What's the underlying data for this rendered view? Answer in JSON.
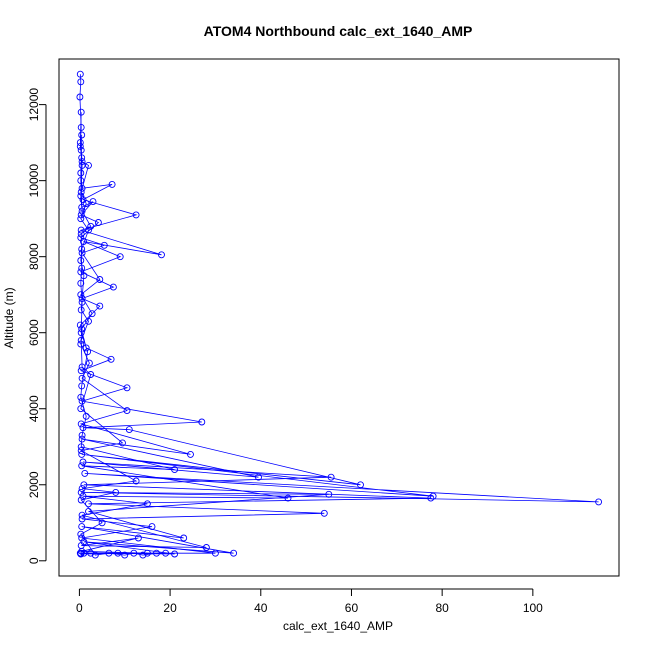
{
  "chart_data": {
    "type": "line",
    "title": "ATOM4 Northbound calc_ext_1640_AMP",
    "xlabel": "calc_ext_1640_AMP",
    "ylabel": "Altitude (m)",
    "xlim": [
      -4.5,
      119
    ],
    "ylim": [
      -400,
      13200
    ],
    "x_ticks": [
      0,
      20,
      40,
      60,
      80,
      100
    ],
    "y_ticks": [
      0,
      2000,
      4000,
      6000,
      8000,
      10000,
      12000
    ],
    "grid": false,
    "legend": "none",
    "marker": "open-circle",
    "color": "#0000ff",
    "series": [
      {
        "values": [
          [
            0.2,
            12800
          ],
          [
            0.3,
            12600
          ],
          [
            0.1,
            12200
          ],
          [
            0.4,
            11400
          ],
          [
            0.2,
            10900
          ],
          [
            0.5,
            10600
          ],
          [
            0.3,
            10200
          ],
          [
            0.6,
            9800
          ],
          [
            7.2,
            9900
          ],
          [
            0.8,
            9500
          ],
          [
            12.5,
            9100
          ],
          [
            0.4,
            8700
          ],
          [
            18.1,
            8050
          ],
          [
            0.9,
            8400
          ],
          [
            9.0,
            8000
          ],
          [
            0.3,
            7600
          ],
          [
            7.5,
            7200
          ],
          [
            0.6,
            6900
          ],
          [
            4.5,
            6700
          ],
          [
            0.2,
            6200
          ],
          [
            1.5,
            5600
          ],
          [
            7.0,
            5300
          ],
          [
            0.4,
            5000
          ],
          [
            10.5,
            4550
          ],
          [
            0.6,
            4200
          ],
          [
            27.0,
            3650
          ],
          [
            0.8,
            3500
          ],
          [
            11.0,
            3450
          ],
          [
            62.0,
            2000
          ],
          [
            0.5,
            2800
          ],
          [
            78.0,
            1700
          ],
          [
            1.2,
            2300
          ],
          [
            114.5,
            1550
          ],
          [
            0.4,
            1800
          ],
          [
            55.0,
            1750
          ],
          [
            2.0,
            1300
          ],
          [
            23.0,
            600
          ],
          [
            0.5,
            900
          ],
          [
            34.0,
            200
          ],
          [
            1.0,
            500
          ],
          [
            21.0,
            180
          ],
          [
            0.3,
            200
          ]
        ]
      },
      {
        "values": [
          [
            0.4,
            11800
          ],
          [
            0.2,
            11000
          ],
          [
            0.6,
            10400
          ],
          [
            0.3,
            9600
          ],
          [
            0.5,
            9300
          ],
          [
            3.0,
            9450
          ],
          [
            0.4,
            9100
          ],
          [
            4.2,
            8900
          ],
          [
            0.3,
            8500
          ],
          [
            5.5,
            8300
          ],
          [
            0.6,
            8100
          ],
          [
            4.5,
            7400
          ],
          [
            0.3,
            7000
          ],
          [
            2.8,
            6500
          ],
          [
            0.5,
            6100
          ],
          [
            0.3,
            5700
          ],
          [
            2.2,
            5200
          ],
          [
            0.6,
            4800
          ],
          [
            10.5,
            3950
          ],
          [
            0.4,
            3600
          ],
          [
            24.5,
            2800
          ],
          [
            0.6,
            3200
          ],
          [
            39.5,
            2200
          ],
          [
            0.8,
            2600
          ],
          [
            55.5,
            2200
          ],
          [
            1.0,
            2000
          ],
          [
            77.5,
            1650
          ],
          [
            2.0,
            1500
          ],
          [
            54.0,
            1250
          ],
          [
            0.6,
            1100
          ],
          [
            16.0,
            900
          ],
          [
            0.5,
            600
          ],
          [
            30.0,
            200
          ],
          [
            0.2,
            200
          ]
        ]
      },
      {
        "values": [
          [
            0.5,
            11200
          ],
          [
            0.3,
            10000
          ],
          [
            0.6,
            9200
          ],
          [
            2.5,
            8800
          ],
          [
            0.4,
            8600
          ],
          [
            0.5,
            7700
          ],
          [
            0.3,
            7300
          ],
          [
            0.6,
            6800
          ],
          [
            0.4,
            6000
          ],
          [
            1.8,
            5500
          ],
          [
            0.5,
            4600
          ],
          [
            0.3,
            4300
          ],
          [
            1.5,
            3800
          ],
          [
            0.6,
            3300
          ],
          [
            0.4,
            3000
          ],
          [
            21.0,
            2400
          ],
          [
            0.5,
            2500
          ],
          [
            46.0,
            1650
          ],
          [
            0.8,
            1700
          ],
          [
            15.0,
            1500
          ],
          [
            0.6,
            1200
          ],
          [
            28.0,
            350
          ],
          [
            0.4,
            400
          ],
          [
            13.0,
            600
          ],
          [
            0.5,
            250
          ],
          [
            15.0,
            200
          ],
          [
            0.3,
            180
          ]
        ]
      },
      {
        "values": [
          [
            0.4,
            10800
          ],
          [
            0.6,
            10500
          ],
          [
            2.0,
            10400
          ],
          [
            0.4,
            9700
          ],
          [
            1.5,
            9400
          ],
          [
            0.3,
            9000
          ],
          [
            2.0,
            8700
          ],
          [
            0.5,
            8200
          ],
          [
            0.3,
            7900
          ],
          [
            1.0,
            7500
          ],
          [
            0.4,
            6600
          ],
          [
            2.0,
            6300
          ],
          [
            0.4,
            5800
          ],
          [
            0.6,
            5100
          ],
          [
            2.5,
            4900
          ],
          [
            0.3,
            4000
          ],
          [
            9.5,
            3100
          ],
          [
            0.4,
            2900
          ],
          [
            12.5,
            2100
          ],
          [
            0.6,
            1900
          ],
          [
            8.0,
            1800
          ],
          [
            0.4,
            1600
          ],
          [
            5.0,
            1000
          ],
          [
            0.3,
            700
          ],
          [
            3.5,
            150
          ],
          [
            6.5,
            200
          ],
          [
            10.0,
            150
          ],
          [
            12.0,
            200
          ],
          [
            14.0,
            150
          ],
          [
            17.0,
            200
          ],
          [
            19.0,
            200
          ],
          [
            8.5,
            200
          ],
          [
            2.5,
            200
          ],
          [
            1.0,
            200
          ]
        ]
      }
    ]
  }
}
